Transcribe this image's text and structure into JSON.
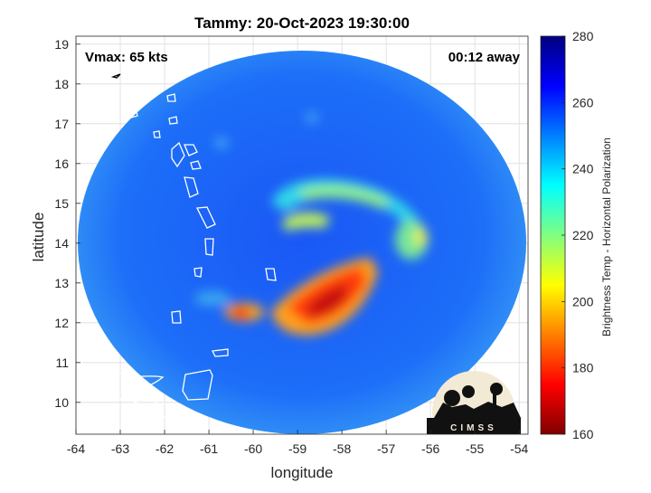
{
  "chart_data": {
    "type": "heatmap",
    "title": "Tammy: 20-Oct-2023 19:30:00",
    "xlabel": "longitude",
    "ylabel": "latitude",
    "xlim": [
      -64,
      -53.8
    ],
    "ylim": [
      9.2,
      19.2
    ],
    "xticks": [
      -64,
      -63,
      -62,
      -61,
      -60,
      -59,
      -58,
      -57,
      -56,
      -55,
      -54
    ],
    "yticks": [
      10,
      11,
      12,
      13,
      14,
      15,
      16,
      17,
      18,
      19
    ],
    "grid": true,
    "annotations": {
      "vmax": "Vmax: 65 kts",
      "time_offset": "00:12 away"
    },
    "colorbar": {
      "label": "Brightness Temp - Horizontal Polarization",
      "range": [
        160,
        280
      ],
      "ticks": [
        160,
        180,
        200,
        220,
        240,
        260,
        280
      ]
    },
    "swath": {
      "center_lon": -59.1,
      "center_lat": 13.6
    },
    "features": [
      {
        "name": "rainband-core",
        "lon": -58.6,
        "lat": 12.7,
        "temp": 172
      },
      {
        "name": "rainband-east",
        "lon": -57.9,
        "lat": 13.3,
        "temp": 182
      },
      {
        "name": "rainband-west-blob",
        "lon": -60.3,
        "lat": 12.3,
        "temp": 185
      },
      {
        "name": "eyewall-north-arc",
        "lon": -58.5,
        "lat": 15.2,
        "temp": 225
      },
      {
        "name": "northwest-spur",
        "lon": -59.6,
        "lat": 14.4,
        "temp": 222
      },
      {
        "name": "east-spot",
        "lon": -55.9,
        "lat": 14.2,
        "temp": 215
      }
    ]
  },
  "logo": {
    "text": "CIMSS"
  }
}
